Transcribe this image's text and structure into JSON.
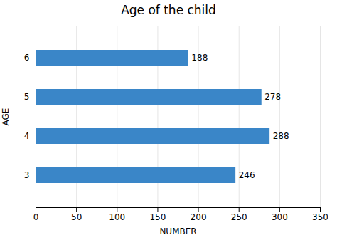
{
  "chart_data": {
    "type": "bar",
    "orientation": "horizontal",
    "title": "Age of the child",
    "xlabel": "NUMBER",
    "ylabel": "AGE",
    "categories": [
      "3",
      "4",
      "5",
      "6"
    ],
    "values": [
      246,
      288,
      278,
      188
    ],
    "color": "#3a86c8",
    "xlim": [
      0,
      350
    ],
    "xticks": [
      0,
      50,
      100,
      150,
      200,
      250,
      300,
      350
    ],
    "grid": true,
    "data_labels": true
  }
}
